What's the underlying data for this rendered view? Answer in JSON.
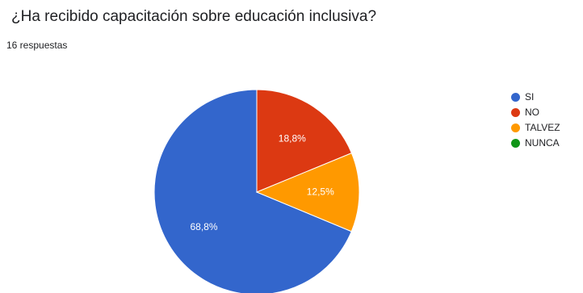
{
  "question": "¿Ha recibido capacitación sobre educación inclusiva?",
  "responses": "16 respuestas",
  "chart_data": {
    "type": "pie",
    "legend_position": "right",
    "slices": [
      {
        "label": "SI",
        "value": 68.8,
        "display": "68,8%",
        "color": "#3366cc"
      },
      {
        "label": "NO",
        "value": 18.8,
        "display": "18,8%",
        "color": "#dc3912"
      },
      {
        "label": "TALVEZ",
        "value": 12.5,
        "display": "12,5%",
        "color": "#ff9900"
      },
      {
        "label": "NUNCA",
        "value": 0,
        "display": "",
        "color": "#109618"
      }
    ]
  }
}
